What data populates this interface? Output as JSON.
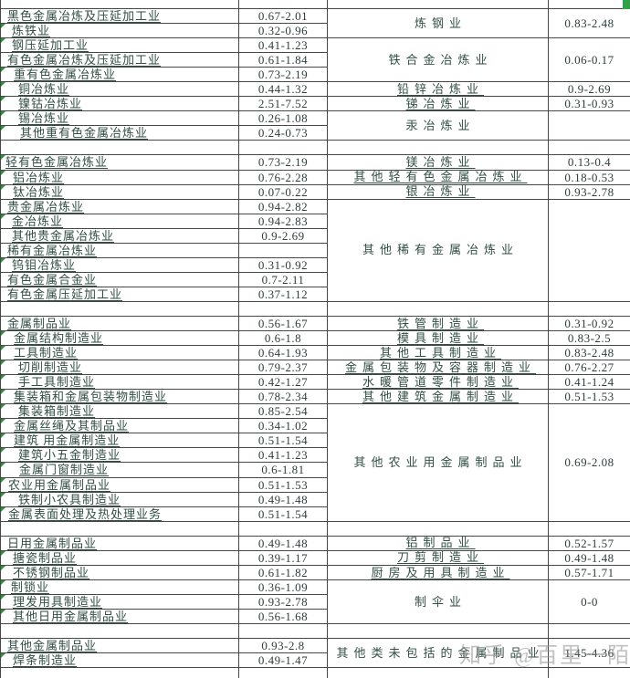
{
  "table": {
    "left_rows": [
      {
        "name": "黑色金属冶炼及压延加工业",
        "value": "0.67-2.01",
        "indent": 7,
        "flag": false
      },
      {
        "name": "炼铁业",
        "value": "0.32-0.96",
        "indent": 12,
        "flag": true
      },
      {
        "name": "钢压延加工业",
        "value": "0.41-1.23",
        "indent": 12,
        "flag": true
      },
      {
        "name": "有色金属冶炼及压延加工业",
        "value": "0.61-1.84",
        "indent": 7,
        "flag": false
      },
      {
        "name": "重有色金属冶炼业",
        "value": "0.73-2.19",
        "indent": 14,
        "flag": true
      },
      {
        "name": "铜冶炼业",
        "value": "0.44-1.32",
        "indent": 19,
        "flag": true
      },
      {
        "name": "镍钴冶炼业",
        "value": "2.51-7.52",
        "indent": 19,
        "flag": true
      },
      {
        "name": "锡冶炼业",
        "value": "0.26-1.08",
        "indent": 19,
        "flag": true
      },
      {
        "name": "其他重有色金属冶炼业",
        "value": "0.24-0.73",
        "indent": 21,
        "flag": true
      },
      {
        "name": "",
        "value": "",
        "indent": 3,
        "flag": false
      },
      {
        "name": "轻有色金属冶炼业",
        "value": "0.73-2.19",
        "indent": 5,
        "flag": true
      },
      {
        "name": "铝冶炼业",
        "value": "0.76-2.28",
        "indent": 13,
        "flag": true
      },
      {
        "name": "钛冶炼业",
        "value": "0.07-0.22",
        "indent": 13,
        "flag": true
      },
      {
        "name": "贵金属冶炼业",
        "value": "0.94-2.82",
        "indent": 7,
        "flag": false
      },
      {
        "name": "金冶炼业",
        "value": "0.94-2.83",
        "indent": 12,
        "flag": true
      },
      {
        "name": "其他贵金属冶炼业",
        "value": "0.9-2.69",
        "indent": 12,
        "flag": false
      },
      {
        "name": "稀有金属冶炼业",
        "value": "",
        "indent": 7,
        "flag": false
      },
      {
        "name": "钨钼冶炼业",
        "value": "0.31-0.92",
        "indent": 12,
        "flag": true
      },
      {
        "name": "有色金属合金业",
        "value": "0.7-2.11",
        "indent": 7,
        "flag": false
      },
      {
        "name": "有色金属压延加工业",
        "value": "0.37-1.12",
        "indent": 7,
        "flag": false
      },
      {
        "name": "",
        "value": "",
        "indent": 3,
        "flag": false
      },
      {
        "name": "金属制品业",
        "value": "0.56-1.67",
        "indent": 7,
        "flag": false
      },
      {
        "name": "金属结构制造业",
        "value": "0.6-1.8",
        "indent": 14,
        "flag": true
      },
      {
        "name": "工具制造业",
        "value": "0.64-1.93",
        "indent": 14,
        "flag": true
      },
      {
        "name": "切削制造业",
        "value": "0.79-2.37",
        "indent": 19,
        "flag": true
      },
      {
        "name": "手工具制造业",
        "value": "0.42-1.27",
        "indent": 19,
        "flag": true
      },
      {
        "name": "集装箱和金属包装物制造业",
        "value": "0.78-2.34",
        "indent": 14,
        "flag": true
      },
      {
        "name": "集装箱制造业",
        "value": "0.85-2.54",
        "indent": 19,
        "flag": true
      },
      {
        "name": "金属丝绳及其制品业",
        "value": "0.34-1.02",
        "indent": 14,
        "flag": true
      },
      {
        "name": "建筑 用金属制造业",
        "value": "0.51-1.54",
        "indent": 14,
        "flag": true
      },
      {
        "name": "建筑小五金制造业",
        "value": "0.41-1.23",
        "indent": 19,
        "flag": true
      },
      {
        "name": "金属门窗制造业",
        "value": "0.6-1.81",
        "indent": 20,
        "flag": true
      },
      {
        "name": "农业用金属制品业",
        "value": "0.51-1.53",
        "indent": 8,
        "flag": true
      },
      {
        "name": "铁制小农具制造业",
        "value": "0.49-1.48",
        "indent": 19,
        "flag": true
      },
      {
        "name": "金属表面处理及热处理业务",
        "value": "0.51-1.54",
        "indent": 8,
        "flag": true
      },
      {
        "name": "",
        "value": "",
        "indent": 3,
        "flag": false
      },
      {
        "name": "日用金属制品业",
        "value": "0.49-1.48",
        "indent": 7,
        "flag": false
      },
      {
        "name": "搪瓷制品业",
        "value": "0.39-1.17",
        "indent": 13,
        "flag": true
      },
      {
        "name": "不锈钢制品业",
        "value": "0.61-1.82",
        "indent": 13,
        "flag": true
      },
      {
        "name": "制锁业",
        "value": "0.36-1.09",
        "indent": 11,
        "flag": true
      },
      {
        "name": "理发用具制造业",
        "value": "0.93-2.78",
        "indent": 13,
        "flag": true
      },
      {
        "name": "其他日用金属制品业",
        "value": "0.56-1.68",
        "indent": 13,
        "flag": true
      },
      {
        "name": "",
        "value": "",
        "indent": 3,
        "flag": false
      },
      {
        "name": "其他金属制品业",
        "value": "0.93-2.8",
        "indent": 7,
        "flag": false
      },
      {
        "name": "焊条制造业",
        "value": "0.49-1.47",
        "indent": 13,
        "flag": true
      }
    ],
    "right_groups": [
      {
        "name": "炼钢业",
        "value": "0.83-2.48",
        "rows": 2,
        "underline": false
      },
      {
        "name": "铁合金冶炼业",
        "value": "0.06-0.17",
        "rows": 3,
        "underline": false
      },
      {
        "name": "铅锌冶炼业",
        "value": "0.9-2.69",
        "rows": 1,
        "underline": true
      },
      {
        "name": "锑冶炼业",
        "value": "0.31-0.93",
        "rows": 1,
        "underline": true
      },
      {
        "name": "汞冶炼业",
        "value": "",
        "rows": 2,
        "underline": false
      },
      {
        "name": "",
        "value": "",
        "rows": 1,
        "underline": false
      },
      {
        "name": "镁冶炼业",
        "value": "0.13-0.4",
        "rows": 1,
        "underline": true
      },
      {
        "name": "其他轻有色金属冶炼业",
        "value": "0.18-0.53",
        "rows": 1,
        "underline": true
      },
      {
        "name": "银冶炼业",
        "value": "0.93-2.78",
        "rows": 1,
        "underline": true
      },
      {
        "name": "其他稀有金属冶炼业",
        "value": "",
        "rows": 7,
        "underline": false
      },
      {
        "name": "",
        "value": "",
        "rows": 1,
        "underline": false
      },
      {
        "name": "铁管制造业",
        "value": "0.31-0.92",
        "rows": 1,
        "underline": true
      },
      {
        "name": "模具制造业",
        "value": "0.83-2.5",
        "rows": 1,
        "underline": true
      },
      {
        "name": "其他工具制造业",
        "value": "0.83-2.48",
        "rows": 1,
        "underline": true
      },
      {
        "name": "金属包装物及容器制造业",
        "value": "0.76-2.27",
        "rows": 1,
        "underline": true
      },
      {
        "name": "水暖管道零件制造业",
        "value": "0.41-1.24",
        "rows": 1,
        "underline": true
      },
      {
        "name": "其他建筑金属制造业",
        "value": "0.51-1.53",
        "rows": 1,
        "underline": true
      },
      {
        "name": "其他农业用金属制品业",
        "value": "0.69-2.08",
        "rows": 8,
        "underline": false
      },
      {
        "name": "",
        "value": "",
        "rows": 1,
        "underline": false
      },
      {
        "name": "铝制品业",
        "value": "0.52-1.57",
        "rows": 1,
        "underline": true
      },
      {
        "name": "刀剪制造业",
        "value": "0.49-1.48",
        "rows": 1,
        "underline": true
      },
      {
        "name": "厨房及用具制造业",
        "value": "0.57-1.71",
        "rows": 1,
        "underline": true
      },
      {
        "name": "制伞业",
        "value": "0-0",
        "rows": 3,
        "underline": false
      },
      {
        "name": "",
        "value": "",
        "rows": 1,
        "underline": false
      },
      {
        "name": "其他类未包括的金属制品业",
        "value": "1.45-4.36",
        "rows": 2,
        "underline": false
      }
    ]
  },
  "watermark": {
    "text": "知乎 @百里一陌"
  },
  "colors": {
    "name_text": "#324e46",
    "value_text": "#2e3d3d",
    "border": "#474747",
    "flag_green": "#2f8f3c",
    "corner_marker_green": "#33a04a",
    "watermark_gray": "#8f8f8f"
  }
}
